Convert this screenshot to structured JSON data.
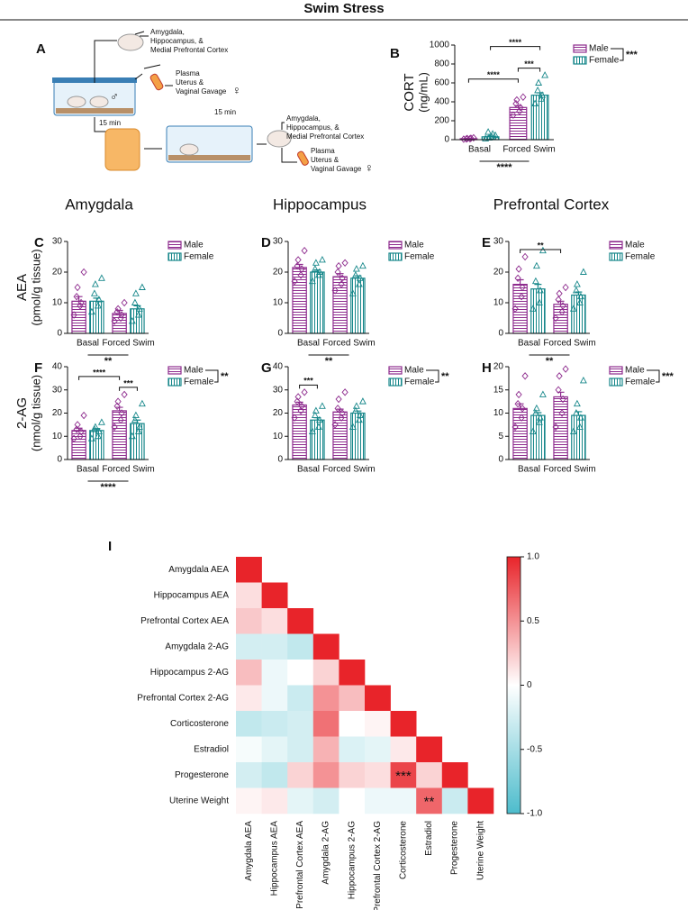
{
  "header": {
    "title": "Swim Stress"
  },
  "column_titles": [
    "Amygdala",
    "Hippocampus",
    "Prefrontal Cortex"
  ],
  "diagram": {
    "label": "A",
    "texts": [
      "Amygdala,",
      "Hippocampus, &",
      "Medial Prefrontal Cortex",
      "Plasma",
      "Uterus &",
      "Vaginal Gavage",
      "♀",
      "♂",
      "15 min",
      "15 min",
      "Amygdala,",
      "Hippocampus, &",
      "Medial Prefrontal Cortex",
      "Plasma",
      "Uterus &",
      "Vaginal Gavage",
      "♀"
    ]
  },
  "chart_data": [
    {
      "type": "bar",
      "label": "B",
      "y_label": [
        "CORT",
        "(ng/mL)"
      ],
      "categories": [
        "Basal",
        "Forced Swim"
      ],
      "series": [
        {
          "name": "Male",
          "color": "#8e2c8e",
          "values": [
            10,
            340
          ],
          "errors": [
            3,
            20
          ],
          "points": [
            [
              5,
              10,
              15,
              8,
              12,
              20
            ],
            [
              260,
              300,
              340,
              380,
              420,
              450
            ]
          ]
        },
        {
          "name": "Female",
          "color": "#16878a",
          "values": [
            30,
            470
          ],
          "errors": [
            8,
            25
          ],
          "points": [
            [
              10,
              30,
              60,
              80,
              20,
              45
            ],
            [
              380,
              430,
              470,
              520,
              600,
              680
            ]
          ]
        }
      ],
      "ylim": [
        0,
        1000
      ],
      "yticks": [
        0,
        200,
        400,
        600,
        800,
        1000
      ],
      "comparisons": [
        {
          "label": "***",
          "from": [
            0,
            1
          ],
          "to": [
            1,
            1
          ]
        },
        {
          "label": "****",
          "from": [
            0,
            0
          ],
          "to": [
            0,
            1
          ]
        },
        {
          "label": "****",
          "from": [
            1,
            0
          ],
          "to": [
            1,
            1
          ]
        }
      ],
      "main_effect": "****",
      "sex_effect": "***"
    },
    {
      "type": "bar",
      "label": "C",
      "y_label": [
        "AEA",
        "(pmol/g tissue)"
      ],
      "categories": [
        "Basal",
        "Forced Swim"
      ],
      "series": [
        {
          "name": "Male",
          "color": "#8e2c8e",
          "values": [
            10.5,
            6.5
          ],
          "errors": [
            1.5,
            1
          ],
          "points": [
            [
              6,
              9,
              10,
              12,
              15,
              20
            ],
            [
              4,
              5,
              6,
              7,
              8,
              10
            ]
          ]
        },
        {
          "name": "Female",
          "color": "#16878a",
          "values": [
            10.5,
            8
          ],
          "errors": [
            1,
            1
          ],
          "points": [
            [
              7,
              9,
              11,
              13,
              16,
              18
            ],
            [
              4,
              6,
              8,
              10,
              13,
              15
            ]
          ]
        }
      ],
      "ylim": [
        0,
        30
      ],
      "yticks": [
        0,
        10,
        20,
        30
      ],
      "comparisons": [],
      "main_effect": "**"
    },
    {
      "type": "bar",
      "label": "D",
      "categories": [
        "Basal",
        "Forced Swim"
      ],
      "series": [
        {
          "name": "Male",
          "color": "#8e2c8e",
          "values": [
            21.5,
            18.5
          ],
          "errors": [
            1,
            1
          ],
          "points": [
            [
              17,
              19,
              21,
              22,
              24,
              27
            ],
            [
              14,
              16,
              18,
              20,
              22,
              23
            ]
          ]
        },
        {
          "name": "Female",
          "color": "#16878a",
          "values": [
            20,
            18
          ],
          "errors": [
            0.7,
            0.8
          ],
          "points": [
            [
              17,
              19,
              20,
              21,
              23,
              24
            ],
            [
              13,
              16,
              18,
              19,
              21,
              22
            ]
          ]
        }
      ],
      "ylim": [
        0,
        30
      ],
      "yticks": [
        0,
        10,
        20,
        30
      ],
      "comparisons": [],
      "main_effect": "**"
    },
    {
      "type": "bar",
      "label": "E",
      "categories": [
        "Basal",
        "Forced Swim"
      ],
      "series": [
        {
          "name": "Male",
          "color": "#8e2c8e",
          "values": [
            16,
            9.5
          ],
          "errors": [
            1.5,
            1
          ],
          "points": [
            [
              8,
              12,
              15,
              18,
              21,
              25
            ],
            [
              5,
              7,
              9,
              11,
              13,
              15
            ]
          ]
        },
        {
          "name": "Female",
          "color": "#16878a",
          "values": [
            14.5,
            12.5
          ],
          "errors": [
            1.5,
            1
          ],
          "points": [
            [
              8,
              10,
              14,
              17,
              22,
              27
            ],
            [
              8,
              10,
              12,
              14,
              16,
              20
            ]
          ]
        }
      ],
      "ylim": [
        0,
        30
      ],
      "yticks": [
        0,
        10,
        20,
        30
      ],
      "comparisons": [
        {
          "label": "**",
          "from": [
            0,
            0
          ],
          "to": [
            0,
            1
          ]
        }
      ],
      "main_effect": "**"
    },
    {
      "type": "bar",
      "label": "F",
      "y_label": [
        "2-AG",
        "(nmol/g tissue)"
      ],
      "categories": [
        "Basal",
        "Forced Swim"
      ],
      "series": [
        {
          "name": "Male",
          "color": "#8e2c8e",
          "values": [
            12.5,
            21
          ],
          "errors": [
            1,
            1.5
          ],
          "points": [
            [
              9,
              10,
              12,
              13,
              15,
              19
            ],
            [
              14,
              17,
              20,
              23,
              25,
              28
            ]
          ]
        },
        {
          "name": "Female",
          "color": "#16878a",
          "values": [
            12.5,
            15.5
          ],
          "errors": [
            0.8,
            1.5
          ],
          "points": [
            [
              9,
              10,
              12,
              13,
              14,
              16
            ],
            [
              10,
              12,
              14,
              17,
              19,
              24
            ]
          ]
        }
      ],
      "ylim": [
        0,
        40
      ],
      "yticks": [
        0,
        10,
        20,
        30,
        40
      ],
      "comparisons": [
        {
          "label": "***",
          "from": [
            0,
            1
          ],
          "to": [
            1,
            1
          ]
        },
        {
          "label": "****",
          "from": [
            0,
            0
          ],
          "to": [
            0,
            1
          ]
        }
      ],
      "main_effect": "****",
      "sex_effect": "**"
    },
    {
      "type": "bar",
      "label": "G",
      "categories": [
        "Basal",
        "Forced Swim"
      ],
      "series": [
        {
          "name": "Male",
          "color": "#8e2c8e",
          "values": [
            23.5,
            20.5
          ],
          "errors": [
            1.2,
            1.2
          ],
          "points": [
            [
              18,
              21,
              23,
              25,
              27,
              29
            ],
            [
              15,
              18,
              20,
              22,
              26,
              29
            ]
          ]
        },
        {
          "name": "Female",
          "color": "#16878a",
          "values": [
            17,
            20
          ],
          "errors": [
            1,
            0.9
          ],
          "points": [
            [
              12,
              14,
              17,
              19,
              21,
              23
            ],
            [
              14,
              17,
              19,
              21,
              23,
              25
            ]
          ]
        }
      ],
      "ylim": [
        0,
        40
      ],
      "yticks": [
        0,
        10,
        20,
        30,
        40
      ],
      "comparisons": [
        {
          "label": "***",
          "from": [
            0,
            0
          ],
          "to": [
            1,
            0
          ]
        }
      ],
      "sex_effect": "**"
    },
    {
      "type": "bar",
      "label": "H",
      "categories": [
        "Basal",
        "Forced Swim"
      ],
      "series": [
        {
          "name": "Male",
          "color": "#8e2c8e",
          "values": [
            11,
            13.5
          ],
          "errors": [
            1,
            1
          ],
          "points": [
            [
              7,
              9,
              11,
              12,
              14,
              18
            ],
            [
              7,
              10,
              13,
              15,
              18,
              19.5
            ]
          ]
        },
        {
          "name": "Female",
          "color": "#16878a",
          "values": [
            9.5,
            9.5
          ],
          "errors": [
            0.6,
            0.8
          ],
          "points": [
            [
              6,
              8,
              9,
              10,
              11,
              14
            ],
            [
              6,
              7,
              9,
              10,
              12,
              17
            ]
          ]
        }
      ],
      "ylim": [
        0,
        20
      ],
      "yticks": [
        0,
        5,
        10,
        15,
        20
      ],
      "comparisons": [],
      "sex_effect": "***"
    },
    {
      "type": "heatmap",
      "label": "I",
      "rows": [
        "Amygdala AEA",
        "Hippocampus AEA",
        "Prefrontal Cortex AEA",
        "Amygdala 2-AG",
        "Hippocampus 2-AG",
        "Prefrontal Cortex 2-AG",
        "Corticosterone",
        "Estradiol",
        "Progesterone",
        "Uterine Weight"
      ],
      "columns": [
        "Amygdala AEA",
        "Hippocampus AEA",
        "Prefrontal Cortex AEA",
        "Amygdala 2-AG",
        "Hippocampus 2-AG",
        "Prefrontal Cortex 2-AG",
        "Corticosterone",
        "Estradiol",
        "Progesterone",
        "Uterine Weight"
      ],
      "values": [
        [
          1
        ],
        [
          0.15,
          1
        ],
        [
          0.25,
          0.15,
          1
        ],
        [
          -0.25,
          -0.25,
          -0.35,
          1
        ],
        [
          0.3,
          -0.1,
          0,
          0.2,
          1
        ],
        [
          0.1,
          -0.1,
          -0.3,
          0.5,
          0.3,
          1
        ],
        [
          -0.35,
          -0.3,
          -0.25,
          0.65,
          0,
          0.05,
          1
        ],
        [
          -0.05,
          -0.15,
          -0.25,
          0.35,
          -0.2,
          -0.15,
          0.1,
          1
        ],
        [
          -0.25,
          -0.35,
          0.2,
          0.5,
          0.2,
          0.15,
          0.85,
          0.2,
          1
        ],
        [
          0.05,
          0.1,
          -0.15,
          -0.25,
          0,
          -0.1,
          -0.1,
          0.7,
          -0.3,
          1
        ]
      ],
      "zlim": [
        -1,
        1
      ],
      "colors": [
        "#4dbccc",
        "#ffffff",
        "#e8242a"
      ],
      "colorbar_ticks": [
        {
          "value": 1,
          "label": "1.0"
        },
        0.5,
        0,
        -0.5,
        {
          "value": -1,
          "label": "-1.0"
        }
      ],
      "annotations": [
        {
          "row": 8,
          "col": 6,
          "label": "***"
        },
        {
          "row": 9,
          "col": 7,
          "label": "**"
        }
      ]
    }
  ]
}
